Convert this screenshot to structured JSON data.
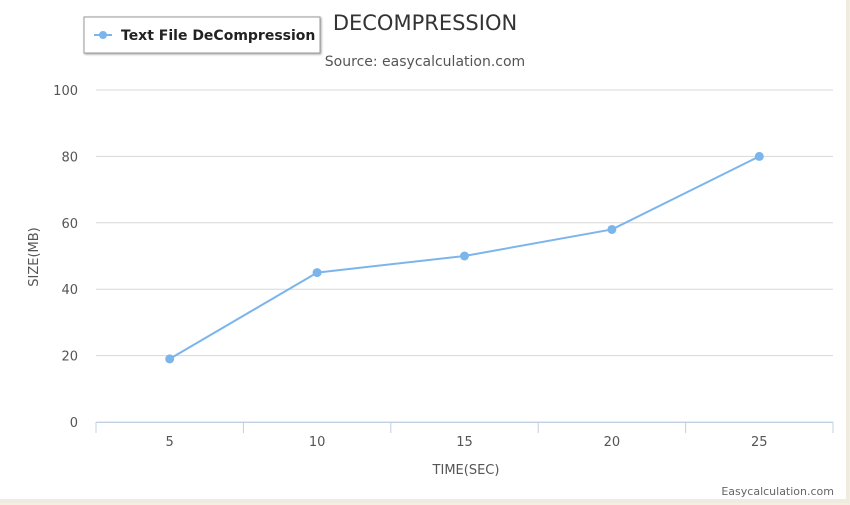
{
  "colors": {
    "series": "#7cb5ec",
    "grid": "#d8d8d8",
    "axis": "#c0d0e0",
    "background": "#ffffff"
  },
  "chart_data": {
    "type": "line",
    "title": "DECOMPRESSION",
    "subtitle": "Source: easycalculation.com",
    "xlabel": "TIME(SEC)",
    "ylabel": "SIZE(MB)",
    "categories": [
      "5",
      "10",
      "15",
      "20",
      "25"
    ],
    "series": [
      {
        "name": "Text File DeCompression",
        "values": [
          19,
          45,
          50,
          58,
          80
        ]
      }
    ],
    "ylim": [
      0,
      100
    ],
    "yticks": [
      "0",
      "20",
      "40",
      "60",
      "80",
      "100"
    ],
    "grid": true,
    "legend": "top-left",
    "credit": "Easycalculation.com"
  }
}
